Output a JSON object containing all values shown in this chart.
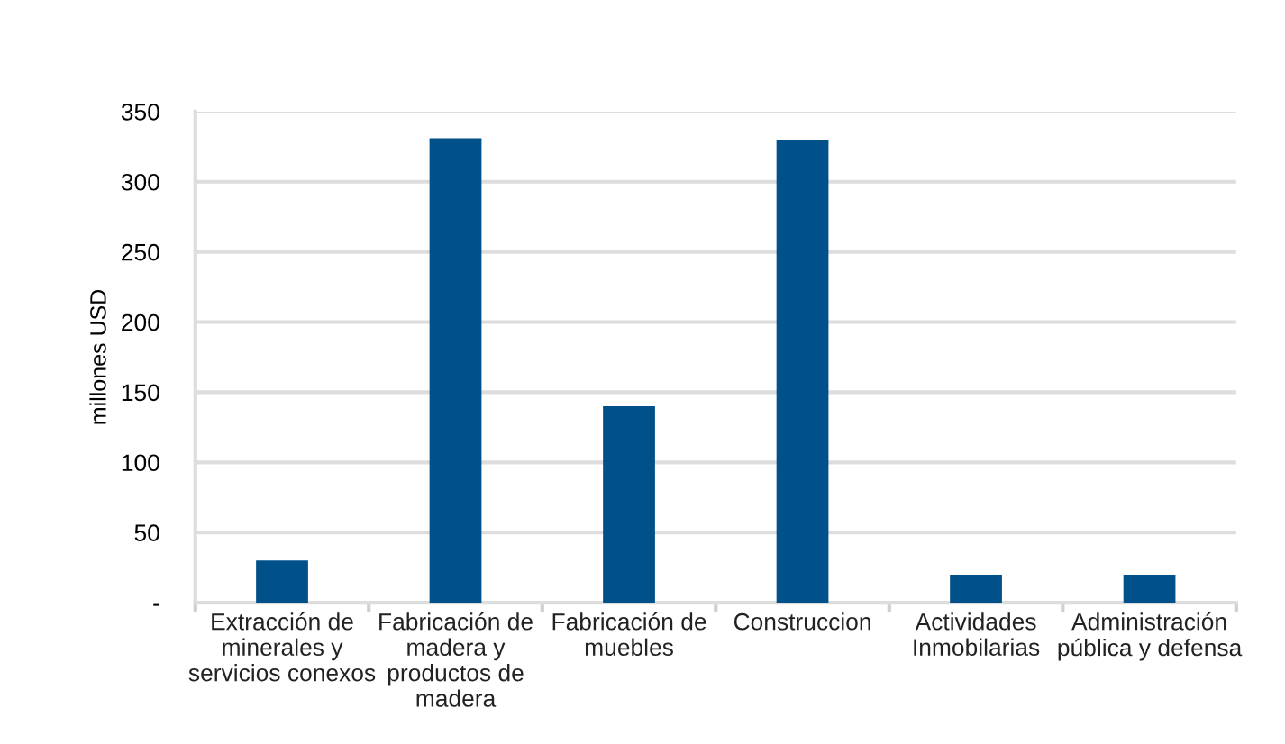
{
  "chart_data": {
    "type": "bar",
    "ylabel": "millones USD",
    "categories": [
      "Extracción de\nminerales y\nservicios conexos",
      "Fabricación de\nmadera y\nproductos de\nmadera",
      "Fabricación de\nmuebles",
      "Construccion",
      "Actividades\nInmobilarias",
      "Administración\npública y defensa"
    ],
    "values": [
      30,
      331,
      140,
      330,
      20,
      20
    ],
    "color": "#00518a",
    "ylim": [
      0,
      350
    ],
    "yticks": [
      {
        "value": 0,
        "label": "-"
      },
      50,
      100,
      150,
      200,
      250,
      300,
      350
    ],
    "grid": "y",
    "legend": false
  }
}
